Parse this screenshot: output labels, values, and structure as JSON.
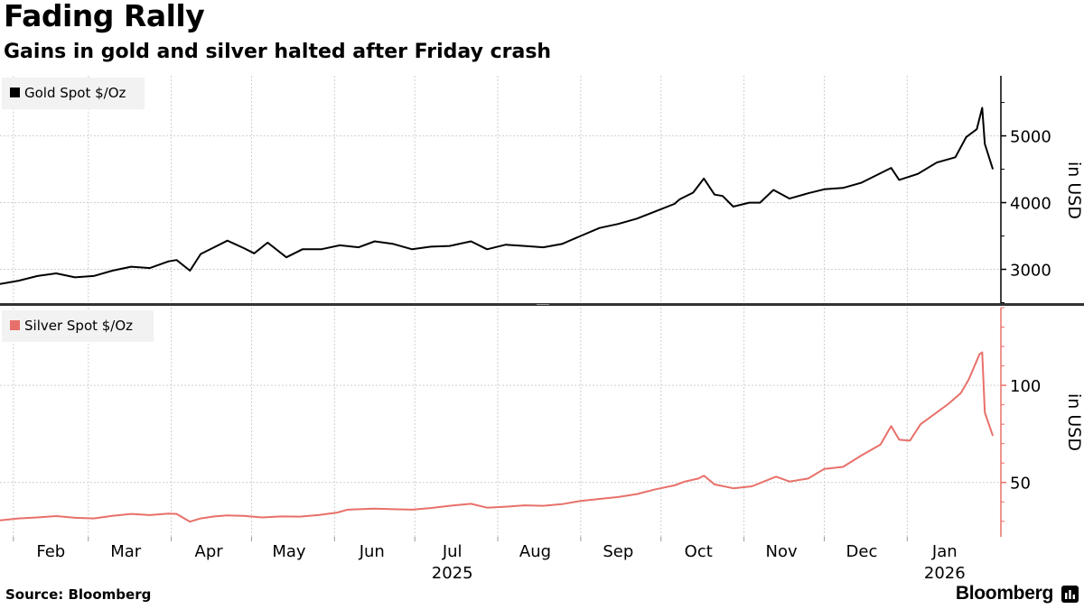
{
  "header": {
    "title": "Fading Rally",
    "subtitle": "Gains in gold and silver halted after Friday crash"
  },
  "footer": {
    "source": "Source: Bloomberg",
    "brand": "Bloomberg"
  },
  "colors": {
    "gold_line": "#000000",
    "silver_line": "#e8706a",
    "grid": "#cfcfcf",
    "divider": "#333333",
    "legend_bg": "#f2f2f2"
  },
  "icons": {
    "brand": "bloomberg-terminal-icon"
  },
  "chart_data": [
    {
      "type": "line",
      "legend": "Gold Spot $/Oz",
      "ylabel": "in USD",
      "ylim": [
        2480,
        5900
      ],
      "yticks": [
        3000,
        4000,
        5000
      ],
      "grid": true,
      "legend_position": "top-left",
      "xlim": [
        "2025-01-27",
        "2026-02-05"
      ],
      "series": [
        {
          "name": "Gold Spot $/Oz",
          "points": [
            [
              "2025-01-27",
              2780
            ],
            [
              "2025-02-03",
              2830
            ],
            [
              "2025-02-10",
              2900
            ],
            [
              "2025-02-17",
              2940
            ],
            [
              "2025-02-24",
              2880
            ],
            [
              "2025-03-03",
              2900
            ],
            [
              "2025-03-10",
              2980
            ],
            [
              "2025-03-17",
              3040
            ],
            [
              "2025-03-24",
              3020
            ],
            [
              "2025-03-31",
              3120
            ],
            [
              "2025-04-03",
              3140
            ],
            [
              "2025-04-08",
              2980
            ],
            [
              "2025-04-12",
              3230
            ],
            [
              "2025-04-17",
              3330
            ],
            [
              "2025-04-22",
              3430
            ],
            [
              "2025-04-28",
              3320
            ],
            [
              "2025-05-02",
              3240
            ],
            [
              "2025-05-07",
              3400
            ],
            [
              "2025-05-14",
              3180
            ],
            [
              "2025-05-20",
              3300
            ],
            [
              "2025-05-27",
              3300
            ],
            [
              "2025-06-03",
              3360
            ],
            [
              "2025-06-10",
              3330
            ],
            [
              "2025-06-16",
              3420
            ],
            [
              "2025-06-23",
              3380
            ],
            [
              "2025-06-30",
              3300
            ],
            [
              "2025-07-07",
              3340
            ],
            [
              "2025-07-14",
              3350
            ],
            [
              "2025-07-22",
              3420
            ],
            [
              "2025-07-28",
              3300
            ],
            [
              "2025-08-04",
              3370
            ],
            [
              "2025-08-11",
              3350
            ],
            [
              "2025-08-18",
              3330
            ],
            [
              "2025-08-25",
              3380
            ],
            [
              "2025-09-01",
              3500
            ],
            [
              "2025-09-08",
              3620
            ],
            [
              "2025-09-15",
              3680
            ],
            [
              "2025-09-22",
              3760
            ],
            [
              "2025-09-29",
              3870
            ],
            [
              "2025-10-06",
              3980
            ],
            [
              "2025-10-08",
              4050
            ],
            [
              "2025-10-13",
              4150
            ],
            [
              "2025-10-17",
              4360
            ],
            [
              "2025-10-21",
              4120
            ],
            [
              "2025-10-24",
              4100
            ],
            [
              "2025-10-28",
              3940
            ],
            [
              "2025-11-03",
              4000
            ],
            [
              "2025-11-07",
              4000
            ],
            [
              "2025-11-12",
              4190
            ],
            [
              "2025-11-18",
              4060
            ],
            [
              "2025-11-25",
              4140
            ],
            [
              "2025-12-01",
              4200
            ],
            [
              "2025-12-08",
              4220
            ],
            [
              "2025-12-15",
              4300
            ],
            [
              "2025-12-22",
              4440
            ],
            [
              "2025-12-26",
              4520
            ],
            [
              "2025-12-29",
              4340
            ],
            [
              "2026-01-05",
              4430
            ],
            [
              "2026-01-12",
              4600
            ],
            [
              "2026-01-19",
              4680
            ],
            [
              "2026-01-23",
              4980
            ],
            [
              "2026-01-27",
              5100
            ],
            [
              "2026-01-29",
              5420
            ],
            [
              "2026-01-30",
              4880
            ],
            [
              "2026-02-02",
              4500
            ]
          ]
        }
      ]
    },
    {
      "type": "line",
      "legend": "Silver Spot $/Oz",
      "ylabel": "in USD",
      "ylim": [
        22,
        140
      ],
      "yticks": [
        50,
        100
      ],
      "grid": true,
      "legend_position": "top-left",
      "xlim": [
        "2025-01-27",
        "2026-02-05"
      ],
      "series": [
        {
          "name": "Silver Spot $/Oz",
          "points": [
            [
              "2025-01-27",
              30.5
            ],
            [
              "2025-02-03",
              31.5
            ],
            [
              "2025-02-10",
              32.0
            ],
            [
              "2025-02-17",
              32.7
            ],
            [
              "2025-02-24",
              31.8
            ],
            [
              "2025-03-03",
              31.5
            ],
            [
              "2025-03-10",
              32.8
            ],
            [
              "2025-03-17",
              33.8
            ],
            [
              "2025-03-24",
              33.2
            ],
            [
              "2025-03-31",
              34.0
            ],
            [
              "2025-04-03",
              33.8
            ],
            [
              "2025-04-08",
              29.8
            ],
            [
              "2025-04-12",
              31.5
            ],
            [
              "2025-04-17",
              32.5
            ],
            [
              "2025-04-22",
              33.0
            ],
            [
              "2025-04-28",
              32.8
            ],
            [
              "2025-05-05",
              32.0
            ],
            [
              "2025-05-12",
              32.5
            ],
            [
              "2025-05-19",
              32.4
            ],
            [
              "2025-05-26",
              33.2
            ],
            [
              "2025-06-02",
              34.5
            ],
            [
              "2025-06-06",
              36.0
            ],
            [
              "2025-06-16",
              36.5
            ],
            [
              "2025-06-23",
              36.2
            ],
            [
              "2025-06-30",
              36.0
            ],
            [
              "2025-07-07",
              36.8
            ],
            [
              "2025-07-14",
              38.0
            ],
            [
              "2025-07-22",
              39.0
            ],
            [
              "2025-07-28",
              37.0
            ],
            [
              "2025-08-04",
              37.5
            ],
            [
              "2025-08-11",
              38.2
            ],
            [
              "2025-08-18",
              38.0
            ],
            [
              "2025-08-25",
              38.8
            ],
            [
              "2025-09-01",
              40.5
            ],
            [
              "2025-09-08",
              41.5
            ],
            [
              "2025-09-15",
              42.5
            ],
            [
              "2025-09-22",
              44.0
            ],
            [
              "2025-09-29",
              46.5
            ],
            [
              "2025-10-06",
              48.5
            ],
            [
              "2025-10-10",
              50.5
            ],
            [
              "2025-10-15",
              52.0
            ],
            [
              "2025-10-17",
              53.5
            ],
            [
              "2025-10-21",
              49.0
            ],
            [
              "2025-10-28",
              47.0
            ],
            [
              "2025-11-04",
              48.0
            ],
            [
              "2025-11-13",
              53.0
            ],
            [
              "2025-11-18",
              50.5
            ],
            [
              "2025-11-25",
              52.0
            ],
            [
              "2025-12-01",
              57.0
            ],
            [
              "2025-12-08",
              58.0
            ],
            [
              "2025-12-15",
              64.0
            ],
            [
              "2025-12-22",
              69.5
            ],
            [
              "2025-12-26",
              79.0
            ],
            [
              "2025-12-29",
              72.0
            ],
            [
              "2026-01-02",
              71.5
            ],
            [
              "2026-01-06",
              80.0
            ],
            [
              "2026-01-12",
              86.0
            ],
            [
              "2026-01-16",
              90.0
            ],
            [
              "2026-01-21",
              96.0
            ],
            [
              "2026-01-24",
              103.0
            ],
            [
              "2026-01-28",
              116.0
            ],
            [
              "2026-01-29",
              117.0
            ],
            [
              "2026-01-30",
              86.0
            ],
            [
              "2026-02-02",
              74.0
            ]
          ]
        }
      ]
    }
  ],
  "x_axis": {
    "tick_dates": [
      "2025-02-01",
      "2025-03-01",
      "2025-04-01",
      "2025-05-01",
      "2025-06-01",
      "2025-07-01",
      "2025-08-01",
      "2025-09-01",
      "2025-10-01",
      "2025-11-01",
      "2025-12-01",
      "2026-01-01"
    ],
    "month_labels": [
      {
        "date": "2025-02-15",
        "label": "Feb"
      },
      {
        "date": "2025-03-15",
        "label": "Mar"
      },
      {
        "date": "2025-04-15",
        "label": "Apr"
      },
      {
        "date": "2025-05-15",
        "label": "May"
      },
      {
        "date": "2025-06-15",
        "label": "Jun"
      },
      {
        "date": "2025-07-15",
        "label": "Jul"
      },
      {
        "date": "2025-08-15",
        "label": "Aug"
      },
      {
        "date": "2025-09-15",
        "label": "Sep"
      },
      {
        "date": "2025-10-15",
        "label": "Oct"
      },
      {
        "date": "2025-11-15",
        "label": "Nov"
      },
      {
        "date": "2025-12-15",
        "label": "Dec"
      },
      {
        "date": "2026-01-15",
        "label": "Jan"
      }
    ],
    "year_labels": [
      {
        "date": "2025-07-15",
        "label": "2025"
      },
      {
        "date": "2026-01-15",
        "label": "2026"
      }
    ]
  }
}
